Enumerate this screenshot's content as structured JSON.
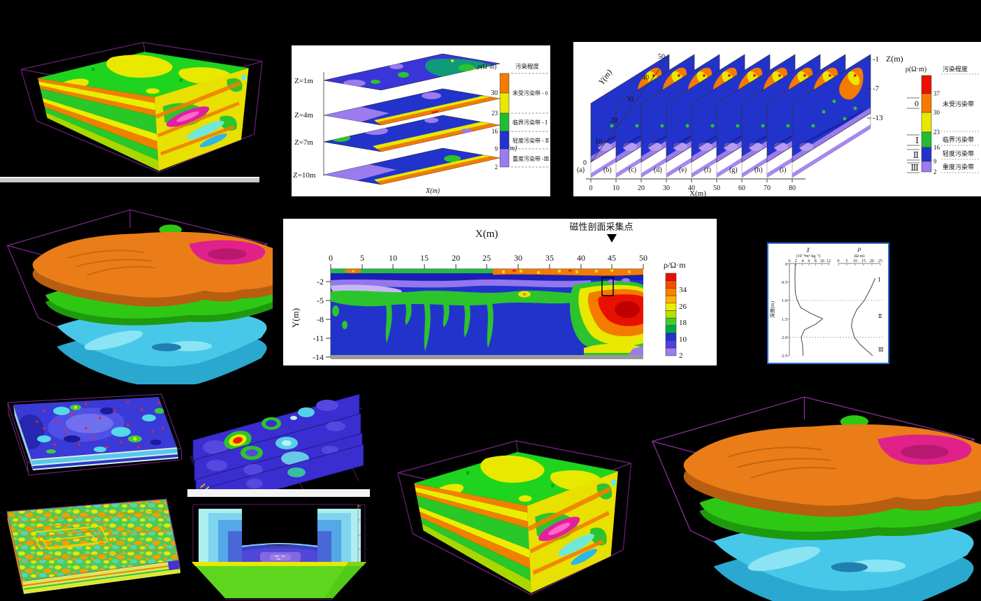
{
  "canvas": {
    "bg": "#000000"
  },
  "palette": {
    "wireframe": "#6b2277",
    "legend_stack": [
      "#f57a00",
      "#e8e800",
      "#22bb33",
      "#2233cc",
      "#9b7bee"
    ],
    "legend_fence": [
      "#ee1000",
      "#f57a00",
      "#e8e800",
      "#22bb33",
      "#2233cc",
      "#9b7bee"
    ],
    "legend_section": [
      "#e81000",
      "#f34d00",
      "#ff8000",
      "#ffb000",
      "#eded00",
      "#b4e000",
      "#3fcc30",
      "#00a848",
      "#2233cc",
      "#5040dd",
      "#9b7bee"
    ]
  },
  "slice_stack": {
    "depth_labels": [
      "Z=1m",
      "Z=4m",
      "Z=7m",
      "Z=10m"
    ],
    "x_label": "X(m)",
    "y_label": "Y(m)",
    "legend": {
      "res_header": "ρ(Ω·m)",
      "level_header": "污染程度",
      "ticks": [
        "30",
        "23",
        "16",
        "9",
        "2"
      ],
      "zones": [
        "未受污染带 - 0",
        "临界污染带 - Ⅰ",
        "轻度污染带 - Ⅱ",
        "重度污染带 -Ⅲ"
      ]
    }
  },
  "fence": {
    "x_label": "X(m)",
    "y_label": "Y(m)",
    "z_label": "Z(m)",
    "x_ticks": [
      "0",
      "10",
      "20",
      "30",
      "40",
      "50",
      "60",
      "70",
      "80"
    ],
    "y_ticks": [
      "0",
      "10",
      "20",
      "30",
      "40",
      "50"
    ],
    "z_ticks": [
      "-1",
      "-7",
      "-13"
    ],
    "slice_labels": [
      "(a)",
      "(b)",
      "(c)",
      "(d)",
      "(e)",
      "(f)",
      "(g)",
      "(h)",
      "(i)"
    ],
    "legend": {
      "res_header": "ρ(Ω·m)",
      "level_header": "污染程度",
      "ticks": [
        "37",
        "30",
        "23",
        "16",
        "9",
        "2"
      ],
      "zone_symbols": [
        "0",
        "Ⅰ",
        "Ⅱ",
        "Ⅲ"
      ],
      "zone_labels": [
        "未受污染带",
        "临界污染带",
        "轻度污染带",
        "重度污染带"
      ]
    }
  },
  "section": {
    "x_title": "X(m)",
    "annotation": "磁性剖面采集点",
    "x_ticks": [
      "0",
      "5",
      "10",
      "15",
      "20",
      "25",
      "30",
      "35",
      "40",
      "45",
      "50"
    ],
    "y_label": "Y(m)",
    "y_ticks": [
      "-2",
      "-5",
      "-8",
      "-11",
      "-14"
    ],
    "legend_header": "ρ/Ω·m",
    "legend_ticks": [
      "34",
      "26",
      "18",
      "10",
      "2"
    ]
  },
  "profiles": {
    "chi_title": "χ",
    "chi_unit": "(10⁻⁸m³·kg⁻¹)",
    "rho_title": "ρ",
    "rho_unit": "(Ω·m)",
    "chi_ticks": [
      "0",
      "2",
      "4",
      "6",
      "8",
      "10",
      "12"
    ],
    "rho_ticks": [
      "0",
      "5",
      "10",
      "15",
      "20",
      "25"
    ],
    "depth_label": "深度(m)",
    "depth_ticks": [
      "0",
      "0.5",
      "1.0",
      "1.5",
      "2.0",
      "2.5"
    ],
    "zone_labels": [
      "Ⅰ",
      "Ⅱ",
      "Ⅲ"
    ]
  },
  "trapezoid": {
    "scale_ticks": [
      "6.0",
      "4.5",
      "3.0",
      "1.5"
    ]
  },
  "chart_data": [
    {
      "type": "heatmap",
      "name": "depth-slice-stack",
      "slices": [
        "Z=1m",
        "Z=4m",
        "Z=7m",
        "Z=10m"
      ],
      "xlabel": "X(m)",
      "ylabel": "Y(m)",
      "legend": {
        "unit": "ρ(Ω·m)",
        "boundaries": [
          30,
          23,
          16,
          9,
          2
        ],
        "zones": [
          "未受污染带 - 0",
          "临界污染带 - Ⅰ",
          "轻度污染带 - Ⅱ",
          "重度污染带 -Ⅲ"
        ]
      }
    },
    {
      "type": "heatmap",
      "name": "resistivity-fence-sections",
      "slices": [
        "(a)",
        "(b)",
        "(c)",
        "(d)",
        "(e)",
        "(f)",
        "(g)",
        "(h)",
        "(i)"
      ],
      "xlabel": "X(m)",
      "ylabel": "Y(m)",
      "zlabel": "Z(m)",
      "x_range": [
        0,
        80
      ],
      "y_range": [
        0,
        50
      ],
      "z_ticks": [
        -1,
        -7,
        -13
      ],
      "legend": {
        "unit": "ρ(Ω·m)",
        "boundaries": [
          37,
          30,
          23,
          16,
          9,
          2
        ],
        "zones": [
          "0 未受污染带",
          "Ⅰ 临界污染带",
          "Ⅱ 轻度污染带",
          "Ⅲ 重度污染带"
        ]
      }
    },
    {
      "type": "heatmap",
      "name": "resistivity-cross-section",
      "xlabel": "X(m)",
      "ylabel": "Y(m)",
      "x_range": [
        0,
        50
      ],
      "y_ticks": [
        -2,
        -5,
        -8,
        -11,
        -14
      ],
      "legend": {
        "unit": "ρ/Ω·m",
        "boundaries": [
          34,
          26,
          18,
          10,
          2
        ]
      },
      "annotation": {
        "label": "磁性剖面采集点",
        "x": 45
      }
    },
    {
      "type": "line",
      "name": "susceptibility-resistivity-depth-profiles",
      "ylabel": "深度(m)",
      "ylim": [
        0,
        2.5
      ],
      "zone_boundaries_depth": [
        1.0,
        2.0
      ],
      "zones": [
        "Ⅰ",
        "Ⅱ",
        "Ⅲ"
      ],
      "series": [
        {
          "name": "χ",
          "unit": "10⁻⁸m³·kg⁻¹",
          "xlim": [
            0,
            12
          ],
          "points": [
            [
              0,
              1.8
            ],
            [
              0.4,
              1.7
            ],
            [
              0.8,
              1.8
            ],
            [
              1.0,
              2.4
            ],
            [
              1.2,
              3.5
            ],
            [
              1.35,
              6.5
            ],
            [
              1.5,
              10.2
            ],
            [
              1.65,
              8.0
            ],
            [
              1.8,
              4.6
            ],
            [
              2.0,
              3.6
            ],
            [
              2.2,
              4.0
            ],
            [
              2.5,
              4.2
            ]
          ]
        },
        {
          "name": "ρ",
          "unit": "Ω·m",
          "xlim": [
            0,
            25
          ],
          "points": [
            [
              0.4,
              22
            ],
            [
              0.7,
              19
            ],
            [
              1.0,
              15.5
            ],
            [
              1.25,
              11
            ],
            [
              1.5,
              8.5
            ],
            [
              1.7,
              7.8
            ],
            [
              2.0,
              9.5
            ],
            [
              2.2,
              13
            ],
            [
              2.5,
              20.5
            ]
          ]
        }
      ]
    }
  ]
}
